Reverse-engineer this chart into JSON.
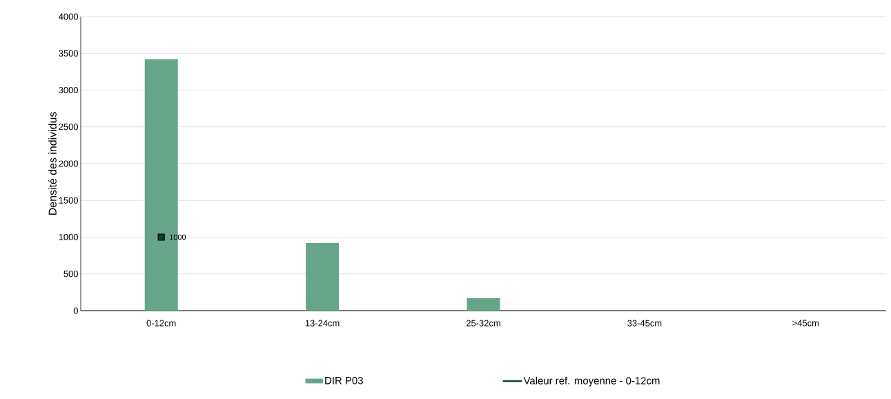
{
  "chart_data": {
    "type": "bar",
    "ylabel": "Densité des individus",
    "categories": [
      "0-12cm",
      "13-24cm",
      "25-32cm",
      "33-45cm",
      ">45cm"
    ],
    "series": [
      {
        "name": "DIR  P03",
        "color": "#67a58a",
        "values": [
          3420,
          920,
          170,
          0,
          0
        ]
      },
      {
        "name": "Valeur ref. moyenne - 0-12cm",
        "type": "line",
        "marker": "square",
        "color": "#0f3d2b",
        "values": [
          1000,
          null,
          null,
          null,
          null
        ],
        "value_labels": [
          "1000",
          null,
          null,
          null,
          null
        ]
      }
    ],
    "ylim": [
      0,
      4000
    ],
    "yticks": [
      0,
      500,
      1000,
      1500,
      2000,
      2500,
      3000,
      3500,
      4000
    ],
    "grid": "y",
    "legend": "bottom"
  }
}
